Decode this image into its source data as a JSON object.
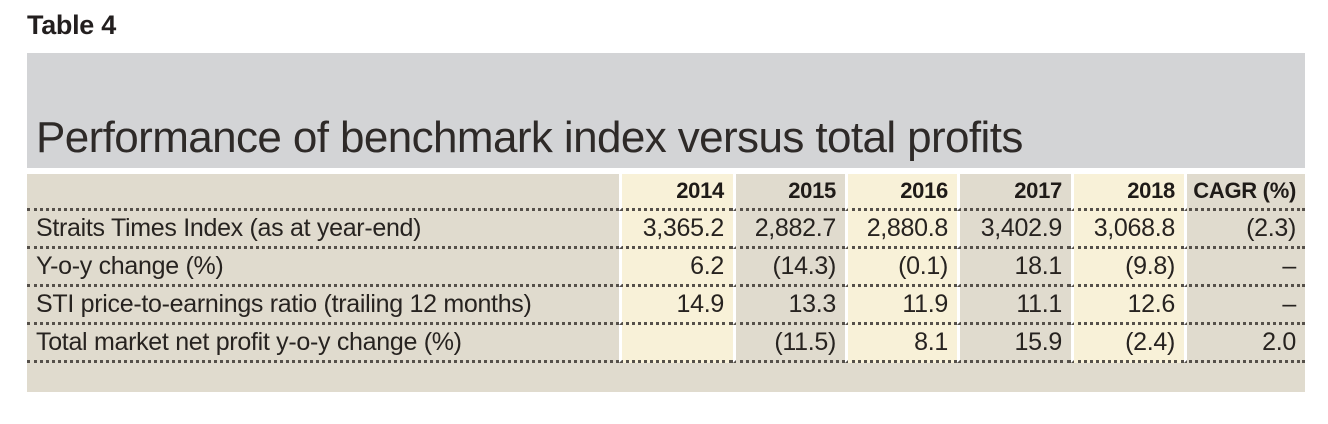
{
  "page_label": "Table 4",
  "banner": {
    "title": "Performance of benchmark index versus total profits"
  },
  "chart_data": {
    "type": "table",
    "title": "Performance of benchmark index versus total profits",
    "columns": [
      "2014",
      "2015",
      "2016",
      "2017",
      "2018",
      "CAGR (%)"
    ],
    "rows": [
      {
        "label": "Straits Times Index (as at year-end)",
        "values": [
          "3,365.2",
          "2,882.7",
          "2,880.8",
          "3,402.9",
          "3,068.8",
          "(2.3)"
        ]
      },
      {
        "label": "Y-o-y change (%)",
        "values": [
          "6.2",
          "(14.3)",
          "(0.1)",
          "18.1",
          "(9.8)",
          "–"
        ]
      },
      {
        "label": "STI price-to-earnings ratio (trailing 12 months)",
        "values": [
          "14.9",
          "13.3",
          "11.9",
          "11.1",
          "12.6",
          "–"
        ]
      },
      {
        "label": "Total market net profit y-o-y change (%)",
        "values": [
          "",
          "(11.5)",
          "8.1",
          "15.9",
          "(2.4)",
          "2.0"
        ]
      }
    ]
  },
  "colors": {
    "banner_bg": "#d3d4d6",
    "tan": "#e0dbce",
    "cream": "#f8f1d8",
    "ink": "#272320",
    "dots": "#55504a"
  }
}
